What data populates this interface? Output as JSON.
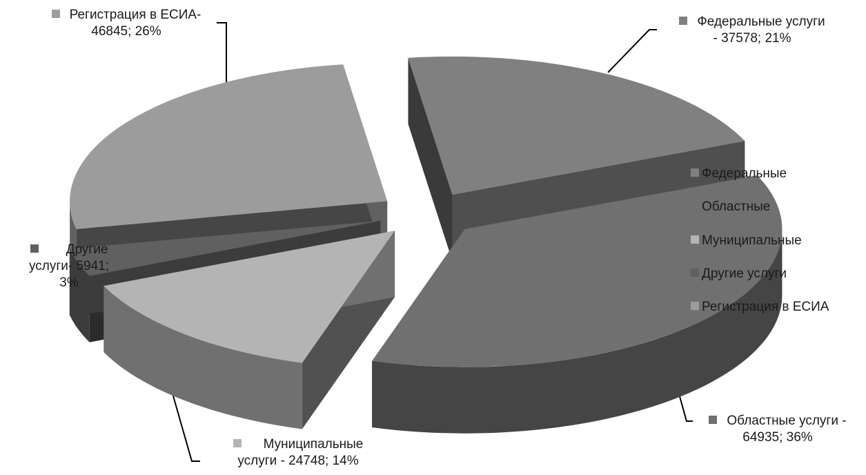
{
  "chart_data": {
    "type": "pie",
    "title": "",
    "style": "3d-exploded",
    "legend_position": "right",
    "slices": [
      {
        "key": "federal",
        "legend": "Федеральные",
        "value": 37578,
        "percent": 21,
        "color": "#808080",
        "label_line1": "Федеральные услуги",
        "label_line2": "- 37578; 21%"
      },
      {
        "key": "regional",
        "legend": "Областные",
        "value": 64935,
        "percent": 36,
        "color": "#707070",
        "label_line1": "Областные услуги -",
        "label_line2": "64935; 36%"
      },
      {
        "key": "municipal",
        "legend": "Муниципальные",
        "value": 24748,
        "percent": 14,
        "color": "#b4b4b4",
        "label_line1": "Муниципальные",
        "label_line2": "услуги - 24748; 14%"
      },
      {
        "key": "other",
        "legend": "Другие услуги",
        "value": 5941,
        "percent": 3,
        "color": "#606060",
        "label_line1": "Другие",
        "label_line2": "услуги- 5941;",
        "label_line3": "3%"
      },
      {
        "key": "esia",
        "legend": "Регистрация в ЕСИА",
        "value": 46845,
        "percent": 26,
        "color": "#9c9c9c",
        "label_line1": "Регистрация в ЕСИА-",
        "label_line2": "46845; 26%"
      }
    ]
  }
}
